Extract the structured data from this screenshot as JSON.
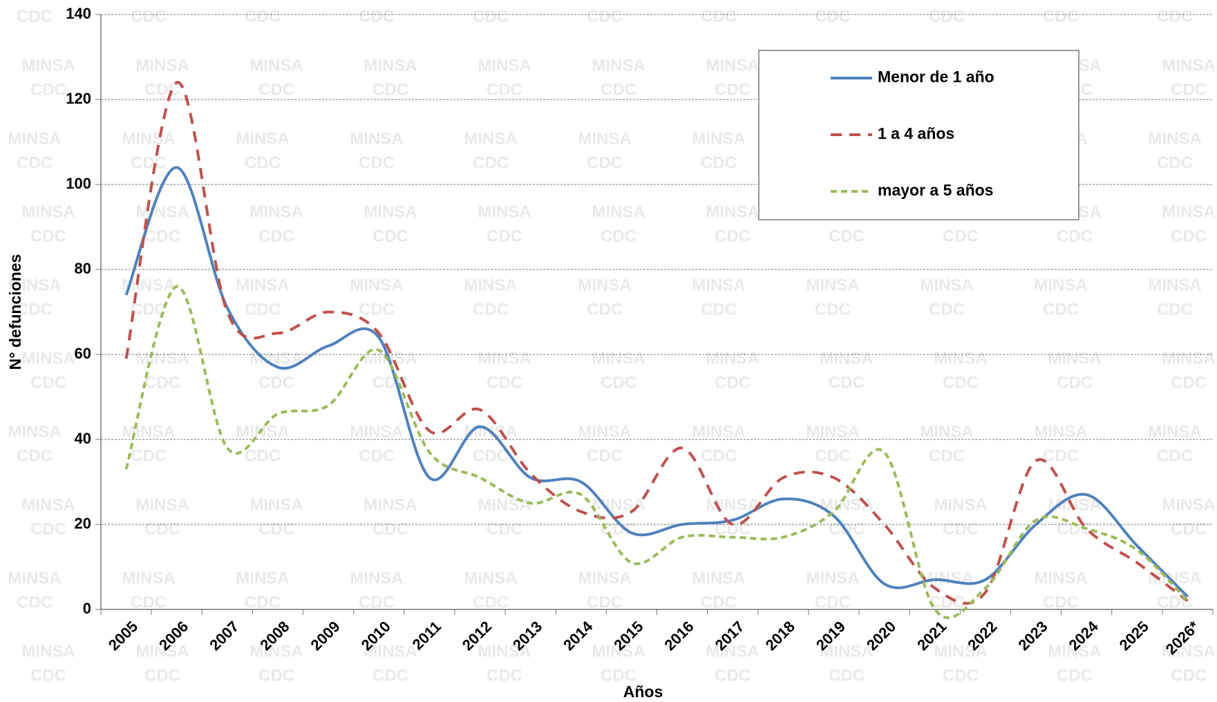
{
  "chart_data": {
    "type": "line",
    "x_label": "Años",
    "y_label": "N° defunciones",
    "watermark": [
      "MINSA",
      "CDC"
    ],
    "categories": [
      "2005",
      "2006",
      "2007",
      "2008",
      "2009",
      "2010",
      "2011",
      "2012",
      "2013",
      "2014",
      "2015",
      "2016",
      "2017",
      "2018",
      "2019",
      "2020",
      "2021",
      "2022",
      "2023",
      "2024",
      "2025",
      "2026*"
    ],
    "series": [
      {
        "name": "Menor de 1 año",
        "color": "#4f81bd",
        "line_style": "solid",
        "values": [
          74,
          104,
          71,
          57,
          62,
          64,
          31,
          43,
          31,
          30,
          18,
          20,
          21,
          26,
          22,
          6,
          7,
          7,
          20,
          27,
          15,
          3
        ]
      },
      {
        "name": "1 a 4 años",
        "color": "#c0504d",
        "line_style": "dashed",
        "values": [
          59,
          124,
          70,
          65,
          70,
          65,
          42,
          47,
          32,
          23,
          23,
          38,
          20,
          31,
          31,
          20,
          5,
          4,
          35,
          19,
          11,
          2
        ]
      },
      {
        "name": "mayor a 5 años",
        "color": "#9bbb59",
        "line_style": "short-dashed",
        "values": [
          33,
          76,
          38,
          46,
          48,
          61,
          37,
          31,
          25,
          27,
          11,
          17,
          17,
          17,
          23,
          37,
          0,
          5,
          21,
          19,
          14,
          2
        ]
      }
    ],
    "ylim": [
      0,
      140
    ],
    "yticks": [
      0,
      20,
      40,
      60,
      80,
      100,
      120,
      140
    ],
    "grid": true,
    "legend": "upper right"
  }
}
